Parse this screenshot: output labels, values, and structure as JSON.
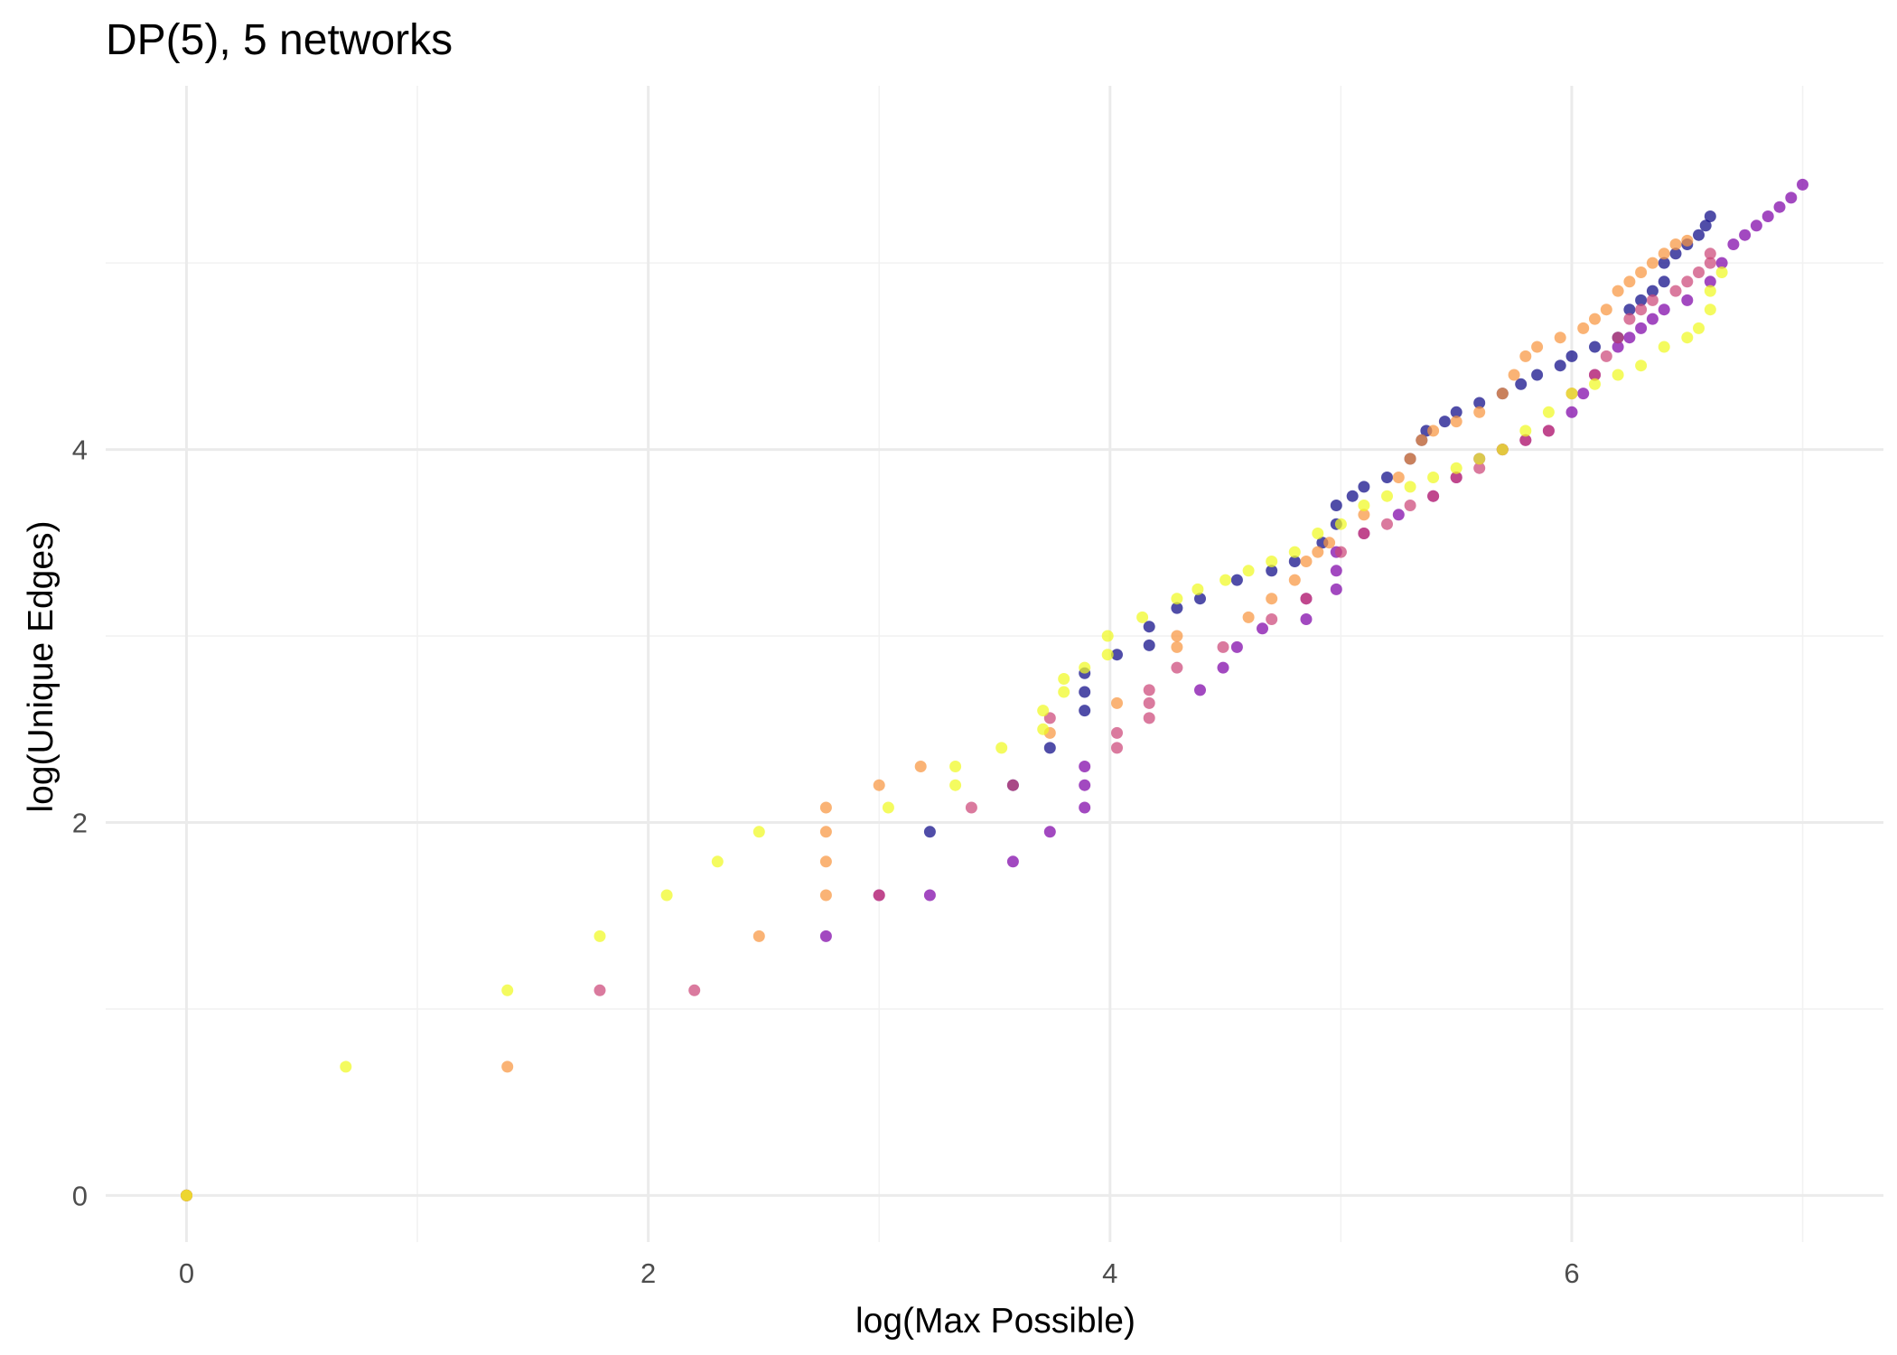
{
  "chart_data": {
    "type": "scatter",
    "title": "DP(5), 5 networks",
    "xlabel": "log(Max Possible)",
    "ylabel": "log(Unique Edges)",
    "xlim": [
      -0.35,
      7.35
    ],
    "ylim": [
      -0.25,
      5.95
    ],
    "x_ticks": [
      0,
      2,
      4,
      6
    ],
    "y_ticks": [
      0,
      2,
      4
    ],
    "x_tick_labels": [
      "0",
      "2",
      "4",
      "6"
    ],
    "y_tick_labels": [
      "0",
      "2",
      "4"
    ],
    "grid": true,
    "legend": "none",
    "series": [
      {
        "color": "#0d0887",
        "points": [
          [
            0,
            0
          ],
          [
            3.22,
            1.95
          ],
          [
            3.58,
            2.2
          ],
          [
            3.74,
            2.4
          ],
          [
            3.89,
            2.6
          ],
          [
            3.89,
            2.7
          ],
          [
            3.89,
            2.8
          ],
          [
            4.03,
            2.9
          ],
          [
            4.17,
            2.95
          ],
          [
            4.17,
            3.05
          ],
          [
            4.29,
            3.15
          ],
          [
            4.39,
            3.2
          ],
          [
            4.55,
            3.3
          ],
          [
            4.7,
            3.35
          ],
          [
            4.8,
            3.4
          ],
          [
            4.92,
            3.5
          ],
          [
            4.98,
            3.6
          ],
          [
            4.98,
            3.7
          ],
          [
            5.05,
            3.75
          ],
          [
            5.1,
            3.8
          ],
          [
            5.2,
            3.85
          ],
          [
            5.3,
            3.95
          ],
          [
            5.35,
            4.05
          ],
          [
            5.37,
            4.1
          ],
          [
            5.45,
            4.15
          ],
          [
            5.5,
            4.2
          ],
          [
            5.6,
            4.25
          ],
          [
            5.7,
            4.3
          ],
          [
            5.78,
            4.35
          ],
          [
            5.85,
            4.4
          ],
          [
            5.95,
            4.45
          ],
          [
            6.0,
            4.5
          ],
          [
            6.1,
            4.55
          ],
          [
            6.2,
            4.6
          ],
          [
            6.25,
            4.75
          ],
          [
            6.3,
            4.8
          ],
          [
            6.35,
            4.85
          ],
          [
            6.4,
            4.9
          ],
          [
            6.4,
            5.0
          ],
          [
            6.45,
            5.05
          ],
          [
            6.5,
            5.1
          ],
          [
            6.55,
            5.15
          ],
          [
            6.58,
            5.2
          ],
          [
            6.6,
            5.25
          ]
        ]
      },
      {
        "color": "#7e03a8",
        "points": [
          [
            0,
            0
          ],
          [
            2.77,
            1.39
          ],
          [
            3.0,
            1.61
          ],
          [
            3.22,
            1.61
          ],
          [
            3.58,
            1.79
          ],
          [
            3.74,
            1.95
          ],
          [
            3.89,
            2.08
          ],
          [
            3.89,
            2.2
          ],
          [
            3.89,
            2.3
          ],
          [
            4.39,
            2.71
          ],
          [
            4.49,
            2.83
          ],
          [
            4.55,
            2.94
          ],
          [
            4.66,
            3.04
          ],
          [
            4.85,
            3.09
          ],
          [
            4.85,
            3.2
          ],
          [
            4.98,
            3.25
          ],
          [
            4.98,
            3.35
          ],
          [
            4.98,
            3.45
          ],
          [
            5.1,
            3.55
          ],
          [
            5.25,
            3.65
          ],
          [
            5.4,
            3.75
          ],
          [
            5.5,
            3.85
          ],
          [
            5.6,
            3.95
          ],
          [
            5.7,
            4.0
          ],
          [
            5.8,
            4.05
          ],
          [
            5.9,
            4.1
          ],
          [
            6.0,
            4.2
          ],
          [
            6.05,
            4.3
          ],
          [
            6.1,
            4.4
          ],
          [
            6.2,
            4.55
          ],
          [
            6.25,
            4.6
          ],
          [
            6.3,
            4.65
          ],
          [
            6.35,
            4.7
          ],
          [
            6.4,
            4.75
          ],
          [
            6.5,
            4.8
          ],
          [
            6.6,
            4.9
          ],
          [
            6.65,
            5.0
          ],
          [
            6.7,
            5.1
          ],
          [
            6.75,
            5.15
          ],
          [
            6.8,
            5.2
          ],
          [
            6.85,
            5.25
          ],
          [
            6.9,
            5.3
          ],
          [
            6.95,
            5.35
          ],
          [
            7.0,
            5.42
          ]
        ]
      },
      {
        "color": "#cc4778",
        "points": [
          [
            0,
            0
          ],
          [
            1.79,
            1.1
          ],
          [
            2.2,
            1.1
          ],
          [
            3.0,
            1.61
          ],
          [
            3.4,
            2.08
          ],
          [
            3.58,
            2.2
          ],
          [
            3.74,
            2.56
          ],
          [
            4.03,
            2.4
          ],
          [
            4.03,
            2.48
          ],
          [
            4.17,
            2.56
          ],
          [
            4.17,
            2.64
          ],
          [
            4.17,
            2.71
          ],
          [
            4.29,
            2.83
          ],
          [
            4.49,
            2.94
          ],
          [
            4.7,
            3.09
          ],
          [
            4.85,
            3.2
          ],
          [
            5.0,
            3.45
          ],
          [
            5.1,
            3.55
          ],
          [
            5.2,
            3.6
          ],
          [
            5.3,
            3.7
          ],
          [
            5.4,
            3.75
          ],
          [
            5.5,
            3.85
          ],
          [
            5.6,
            3.9
          ],
          [
            5.7,
            4.0
          ],
          [
            5.8,
            4.05
          ],
          [
            5.9,
            4.1
          ],
          [
            6.0,
            4.3
          ],
          [
            6.1,
            4.4
          ],
          [
            6.15,
            4.5
          ],
          [
            6.2,
            4.6
          ],
          [
            6.25,
            4.7
          ],
          [
            6.3,
            4.75
          ],
          [
            6.35,
            4.8
          ],
          [
            6.45,
            4.85
          ],
          [
            6.5,
            4.9
          ],
          [
            6.55,
            4.95
          ],
          [
            6.6,
            5.0
          ],
          [
            6.6,
            5.05
          ]
        ]
      },
      {
        "color": "#f89540",
        "points": [
          [
            0,
            0
          ],
          [
            1.39,
            0.69
          ],
          [
            2.48,
            1.39
          ],
          [
            2.77,
            1.61
          ],
          [
            2.77,
            1.79
          ],
          [
            2.77,
            1.95
          ],
          [
            2.77,
            2.08
          ],
          [
            3.0,
            2.2
          ],
          [
            3.18,
            2.3
          ],
          [
            3.74,
            2.48
          ],
          [
            4.03,
            2.64
          ],
          [
            4.29,
            2.94
          ],
          [
            4.29,
            3.0
          ],
          [
            4.6,
            3.1
          ],
          [
            4.7,
            3.2
          ],
          [
            4.8,
            3.3
          ],
          [
            4.85,
            3.4
          ],
          [
            4.9,
            3.45
          ],
          [
            4.95,
            3.5
          ],
          [
            5.1,
            3.65
          ],
          [
            5.25,
            3.85
          ],
          [
            5.3,
            3.95
          ],
          [
            5.35,
            4.05
          ],
          [
            5.4,
            4.1
          ],
          [
            5.5,
            4.15
          ],
          [
            5.6,
            4.2
          ],
          [
            5.7,
            4.3
          ],
          [
            5.75,
            4.4
          ],
          [
            5.8,
            4.5
          ],
          [
            5.85,
            4.55
          ],
          [
            5.95,
            4.6
          ],
          [
            6.05,
            4.65
          ],
          [
            6.1,
            4.7
          ],
          [
            6.15,
            4.75
          ],
          [
            6.2,
            4.85
          ],
          [
            6.25,
            4.9
          ],
          [
            6.3,
            4.95
          ],
          [
            6.35,
            5.0
          ],
          [
            6.4,
            5.05
          ],
          [
            6.45,
            5.1
          ],
          [
            6.5,
            5.12
          ]
        ]
      },
      {
        "color": "#f0f921",
        "points": [
          [
            0,
            0
          ],
          [
            0.69,
            0.69
          ],
          [
            1.39,
            1.1
          ],
          [
            1.79,
            1.39
          ],
          [
            2.08,
            1.61
          ],
          [
            2.3,
            1.79
          ],
          [
            2.48,
            1.95
          ],
          [
            3.04,
            2.08
          ],
          [
            3.33,
            2.2
          ],
          [
            3.33,
            2.3
          ],
          [
            3.53,
            2.4
          ],
          [
            3.71,
            2.5
          ],
          [
            3.71,
            2.6
          ],
          [
            3.8,
            2.7
          ],
          [
            3.8,
            2.77
          ],
          [
            3.89,
            2.83
          ],
          [
            3.99,
            2.9
          ],
          [
            3.99,
            3.0
          ],
          [
            4.14,
            3.1
          ],
          [
            4.29,
            3.2
          ],
          [
            4.38,
            3.25
          ],
          [
            4.5,
            3.3
          ],
          [
            4.6,
            3.35
          ],
          [
            4.7,
            3.4
          ],
          [
            4.8,
            3.45
          ],
          [
            4.9,
            3.55
          ],
          [
            5.0,
            3.6
          ],
          [
            5.1,
            3.7
          ],
          [
            5.2,
            3.75
          ],
          [
            5.3,
            3.8
          ],
          [
            5.4,
            3.85
          ],
          [
            5.5,
            3.9
          ],
          [
            5.6,
            3.95
          ],
          [
            5.7,
            4.0
          ],
          [
            5.8,
            4.1
          ],
          [
            5.9,
            4.2
          ],
          [
            6.0,
            4.3
          ],
          [
            6.1,
            4.35
          ],
          [
            6.2,
            4.4
          ],
          [
            6.3,
            4.45
          ],
          [
            6.4,
            4.55
          ],
          [
            6.5,
            4.6
          ],
          [
            6.55,
            4.65
          ],
          [
            6.6,
            4.75
          ],
          [
            6.6,
            4.85
          ],
          [
            6.65,
            4.95
          ]
        ]
      }
    ]
  }
}
